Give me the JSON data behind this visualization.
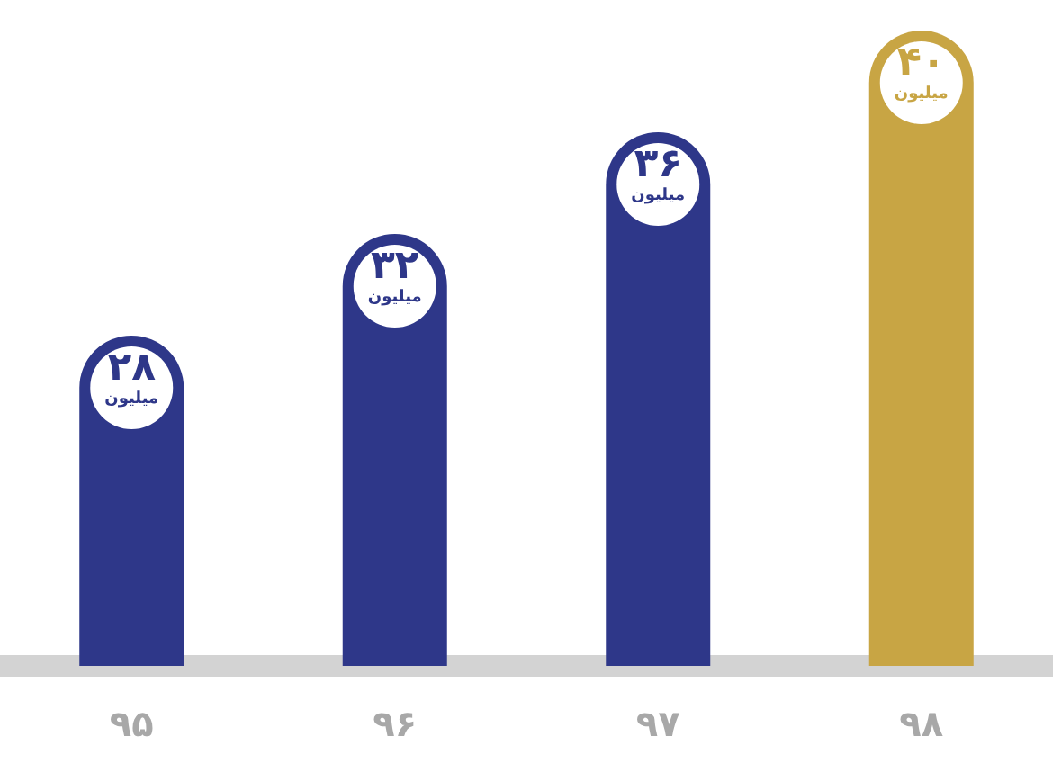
{
  "chart_data": {
    "type": "bar",
    "categories": [
      "۹۵",
      "۹۶",
      "۹۷",
      "۹۸"
    ],
    "values": [
      28,
      32,
      36,
      40
    ],
    "colors": [
      "#2e3789",
      "#2e3789",
      "#2e3789",
      "#c8a544"
    ],
    "value_labels": [
      "۲۸\nمیلیون",
      "۳۲\nمیلیون",
      "۳۶\nمیلیون",
      "۴۰\nمیلیون"
    ],
    "ylim": [
      15,
      40
    ]
  }
}
